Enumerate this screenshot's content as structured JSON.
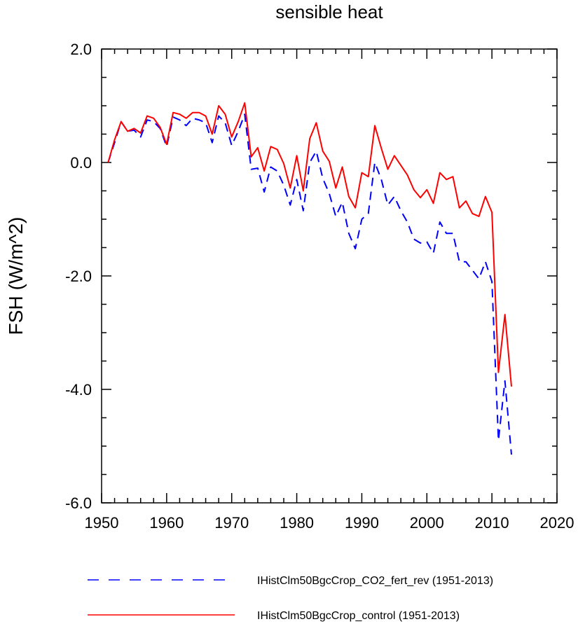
{
  "chart_data": {
    "type": "line",
    "title": "sensible heat",
    "ylabel": "FSH  (W/m^2)",
    "xlabel": "",
    "xlim": [
      1950,
      2020
    ],
    "ylim": [
      -6.0,
      2.0
    ],
    "xticks": [
      1950,
      1960,
      1970,
      1980,
      1990,
      2000,
      2010,
      2020
    ],
    "xtick_labels": [
      "1950",
      "1960",
      "1970",
      "1980",
      "1990",
      "2000",
      "2010",
      "2020"
    ],
    "yticks": [
      2.0,
      0.0,
      -2.0,
      -4.0,
      -6.0
    ],
    "ytick_labels": [
      "2.0",
      "0.0",
      "-2.0",
      "-4.0",
      "-6.0"
    ],
    "grid": false,
    "legend_position": "bottom",
    "x": [
      1951,
      1952,
      1953,
      1954,
      1955,
      1956,
      1957,
      1958,
      1959,
      1960,
      1961,
      1962,
      1963,
      1964,
      1965,
      1966,
      1967,
      1968,
      1969,
      1970,
      1971,
      1972,
      1973,
      1974,
      1975,
      1976,
      1977,
      1978,
      1979,
      1980,
      1981,
      1982,
      1983,
      1984,
      1985,
      1986,
      1987,
      1988,
      1989,
      1990,
      1991,
      1992,
      1993,
      1994,
      1995,
      1996,
      1997,
      1998,
      1999,
      2000,
      2001,
      2002,
      2003,
      2004,
      2005,
      2006,
      2007,
      2008,
      2009,
      2010,
      2011,
      2012,
      2013
    ],
    "series": [
      {
        "name": "IHistClm50BgcCrop_CO2_fert_rev (1951-2013)",
        "color": "#0000ff",
        "dash": "dashed",
        "values": [
          0.0,
          0.35,
          0.72,
          0.55,
          0.57,
          0.45,
          0.75,
          0.72,
          0.6,
          0.28,
          0.8,
          0.75,
          0.65,
          0.78,
          0.75,
          0.7,
          0.35,
          0.82,
          0.7,
          0.3,
          0.55,
          0.85,
          -0.12,
          -0.1,
          -0.52,
          -0.08,
          -0.15,
          -0.4,
          -0.75,
          -0.3,
          -0.85,
          0.0,
          0.2,
          -0.28,
          -0.55,
          -0.95,
          -0.7,
          -1.25,
          -1.52,
          -1.0,
          -0.9,
          0.0,
          -0.3,
          -0.75,
          -0.6,
          -0.85,
          -1.05,
          -1.35,
          -1.42,
          -1.4,
          -1.6,
          -1.05,
          -1.25,
          -1.25,
          -1.75,
          -1.75,
          -1.9,
          -2.05,
          -1.75,
          -2.1,
          -4.9,
          -3.85,
          -5.15
        ]
      },
      {
        "name": "IHistClm50BgcCrop_control (1951-2013)",
        "color": "#ff0000",
        "dash": "solid",
        "values": [
          0.0,
          0.4,
          0.72,
          0.55,
          0.6,
          0.52,
          0.82,
          0.78,
          0.62,
          0.32,
          0.88,
          0.85,
          0.78,
          0.88,
          0.88,
          0.82,
          0.5,
          1.0,
          0.85,
          0.45,
          0.72,
          1.05,
          0.1,
          0.26,
          -0.15,
          0.28,
          0.23,
          -0.02,
          -0.45,
          0.12,
          -0.5,
          0.42,
          0.7,
          0.2,
          0.02,
          -0.45,
          -0.08,
          -0.6,
          -0.8,
          -0.18,
          -0.25,
          0.65,
          0.25,
          -0.12,
          0.12,
          -0.05,
          -0.22,
          -0.48,
          -0.62,
          -0.48,
          -0.72,
          -0.18,
          -0.3,
          -0.25,
          -0.8,
          -0.68,
          -0.9,
          -0.95,
          -0.6,
          -0.88,
          -3.7,
          -2.68,
          -3.95
        ]
      }
    ]
  }
}
